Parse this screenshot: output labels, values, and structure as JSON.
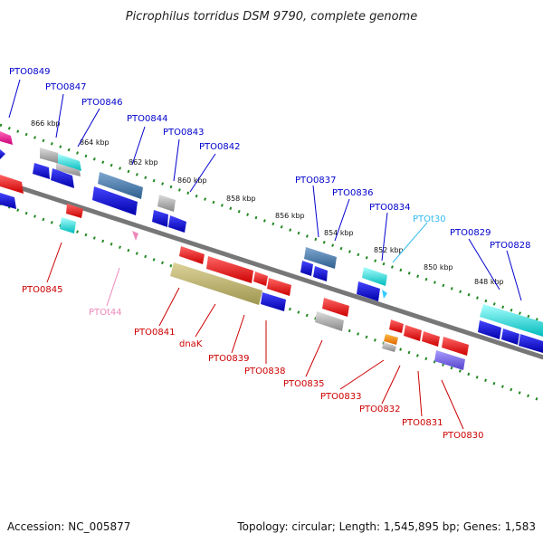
{
  "title": "Picrophilus torridus DSM 9790, complete genome",
  "footer": {
    "accession": "Accession: NC_005877",
    "summary": "Topology: circular; Length: 1,545,895 bp; Genes: 1,583"
  },
  "scale_labels": [
    "866 kbp",
    "864 kbp",
    "862 kbp",
    "860 kbp",
    "858 kbp",
    "856 kbp",
    "854 kbp",
    "852 kbp",
    "850 kbp",
    "848 kbp"
  ],
  "genes": {
    "PTO0849": "PTO0849",
    "PTO0847": "PTO0847",
    "PTO0846": "PTO0846",
    "PTO0844": "PTO0844",
    "PTO0843": "PTO0843",
    "PTO0842": "PTO0842",
    "PTO0837": "PTO0837",
    "PTO0836": "PTO0836",
    "PTO0834": "PTO0834",
    "PTOt30": "PTOt30",
    "PTO0829": "PTO0829",
    "PTO0828": "PTO0828",
    "PTO0845": "PTO0845",
    "PTOt44": "PTOt44",
    "PTO0841": "PTO0841",
    "dnaK": "dnaK",
    "PTO0839": "PTO0839",
    "PTO0838": "PTO0838",
    "PTO0835": "PTO0835",
    "PTO0833": "PTO0833",
    "PTO0832": "PTO0832",
    "PTO0831": "PTO0831",
    "PTO0830": "PTO0830"
  },
  "colors": {
    "forward": "#ff0000",
    "reverse": "#0000ee",
    "rna": "#00dddd",
    "pseudo": "#aaaaaa",
    "steel": "#4682b4",
    "olive": "#bdb76b",
    "magenta": "#ff1493",
    "orange": "#ff8800",
    "lavender": "#7b68ee"
  }
}
